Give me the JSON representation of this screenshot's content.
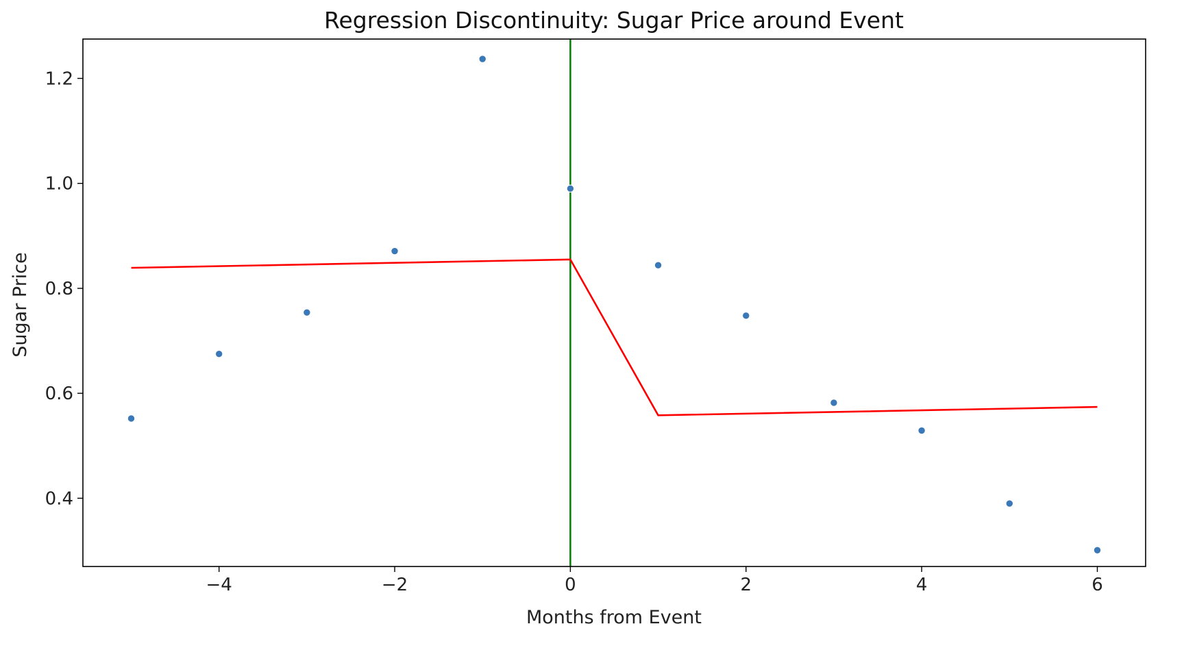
{
  "chart_data": {
    "type": "scatter",
    "title": "Regression Discontinuity: Sugar Price around Event",
    "xlabel": "Months from Event",
    "ylabel": "Sugar Price",
    "xlim": [
      -5.55,
      6.55
    ],
    "ylim": [
      0.27,
      1.275
    ],
    "xticks": [
      -4,
      -2,
      0,
      2,
      4,
      6
    ],
    "xtick_labels": [
      "−4",
      "−2",
      "0",
      "2",
      "4",
      "6"
    ],
    "yticks": [
      0.4,
      0.6,
      0.8,
      1.0,
      1.2
    ],
    "ytick_labels": [
      "0.4",
      "0.6",
      "0.8",
      "1.0",
      "1.2"
    ],
    "grid": false,
    "legend": "none",
    "points": {
      "x": [
        -5,
        -4,
        -3,
        -2,
        -1,
        0,
        1,
        2,
        3,
        4,
        5,
        6
      ],
      "y": [
        0.552,
        0.675,
        0.754,
        0.871,
        1.237,
        0.99,
        0.844,
        0.748,
        0.582,
        0.529,
        0.39,
        0.301
      ],
      "color": "#3a78b8"
    },
    "fit_line": {
      "x": [
        -5,
        0,
        1,
        6
      ],
      "y": [
        0.839,
        0.855,
        0.558,
        0.574
      ],
      "color": "#ff0000"
    },
    "cutoff_line": {
      "x": 0,
      "color": "#008000"
    }
  }
}
